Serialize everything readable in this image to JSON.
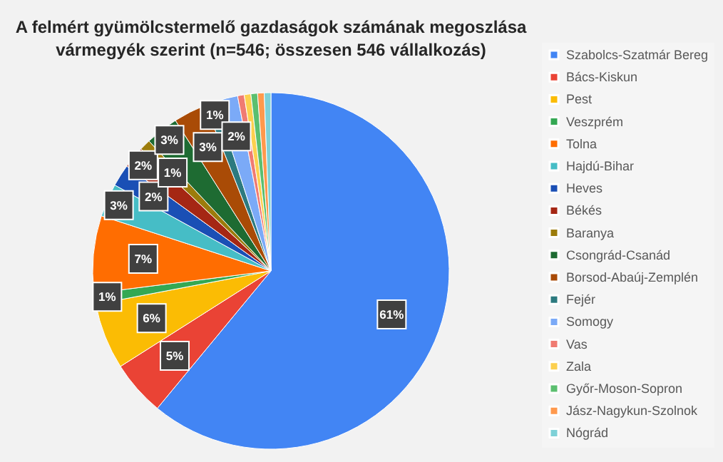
{
  "chart_data": {
    "type": "pie",
    "title": "A felmért gyümölcstermelő gazdaságok számának megoszlása vármegyék szerint (n=546; összesen 546 vállalkozás)",
    "categories": [
      "Szabolcs-Szatmár Bereg",
      "Bács-Kiskun",
      "Pest",
      "Veszprém",
      "Tolna",
      "Hajdú-Bihar",
      "Heves",
      "Békés",
      "Baranya",
      "Csongrád-Csanád",
      "Borsod-Abaúj-Zemplén",
      "Fejér",
      "Somogy",
      "Vas",
      "Zala",
      "Győr-Moson-Sopron",
      "Jász-Nagykun-Szolnok",
      "Nógrád"
    ],
    "values": [
      61,
      5,
      6,
      1,
      7,
      3,
      2,
      2,
      1,
      3,
      3,
      1,
      2,
      0.6,
      0.6,
      0.6,
      0.6,
      0.6
    ],
    "value_labels": [
      "61%",
      "5%",
      "6%",
      "1%",
      "7%",
      "3%",
      "2%",
      "2%",
      "1%",
      "3%",
      "3%",
      "1%",
      "2%",
      null,
      null,
      null,
      null,
      null
    ],
    "colors": [
      "#4285f4",
      "#ea4335",
      "#fbbc04",
      "#34a853",
      "#ff6d01",
      "#46bdc6",
      "#1a4fb5",
      "#a52714",
      "#9c7c0b",
      "#1e6b32",
      "#a94b06",
      "#2c7a7f",
      "#7baaf7",
      "#f07b72",
      "#fcd04f",
      "#5bbf6f",
      "#ff994d",
      "#7ed1d7"
    ],
    "legend": "right"
  }
}
